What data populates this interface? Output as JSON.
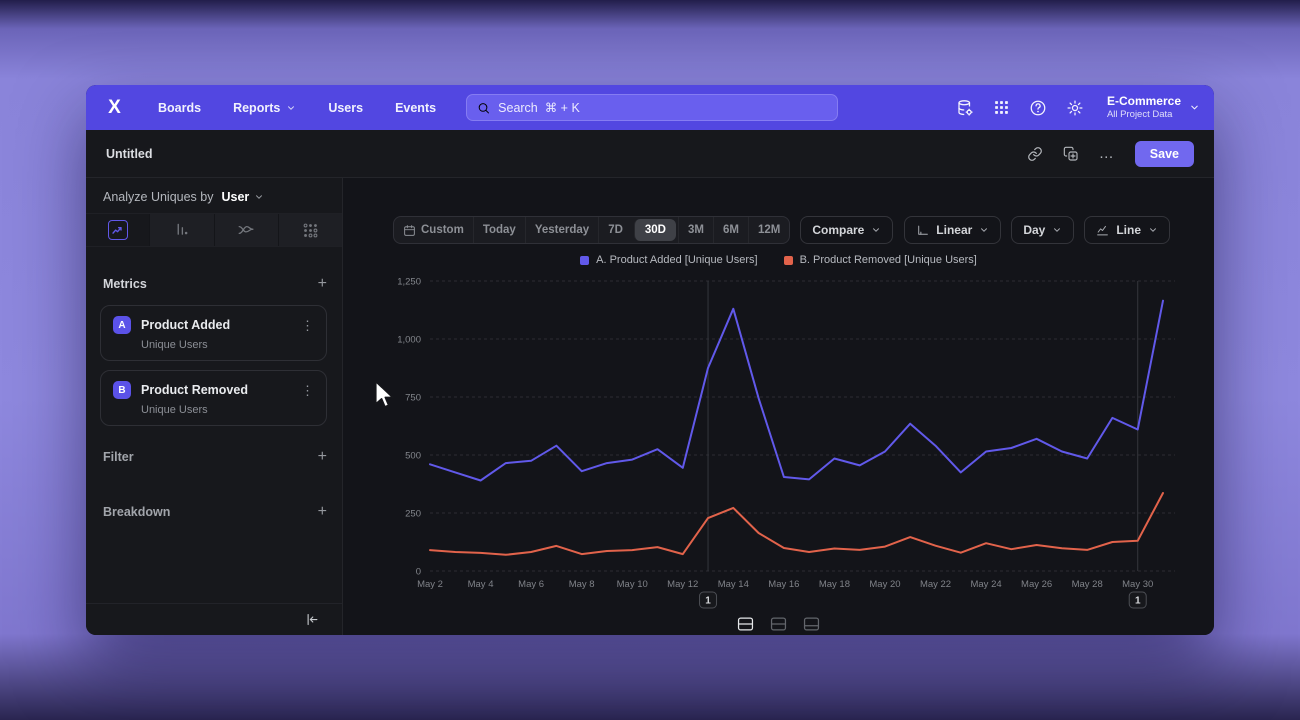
{
  "icons": {
    "logo": "X",
    "add": "+",
    "kebab": "⋮",
    "more": "…",
    "help": "?"
  },
  "nav": {
    "items": [
      {
        "label": "Boards",
        "has_dropdown": false
      },
      {
        "label": "Reports",
        "has_dropdown": true
      },
      {
        "label": "Users",
        "has_dropdown": false
      },
      {
        "label": "Events",
        "has_dropdown": false
      }
    ],
    "search_placeholder": "Search  ⌘ + K",
    "org_name": "E-Commerce",
    "org_scope": "All Project Data"
  },
  "toolbar": {
    "title": "Untitled",
    "save_label": "Save"
  },
  "sidebar": {
    "analyze_prefix": "Analyze Uniques by",
    "analyze_value": "User",
    "metrics_header": "Metrics",
    "metrics": [
      {
        "badge": "A",
        "name": "Product Added",
        "subtitle": "Unique Users"
      },
      {
        "badge": "B",
        "name": "Product Removed",
        "subtitle": "Unique Users"
      }
    ],
    "filter_header": "Filter",
    "breakdown_header": "Breakdown"
  },
  "controls": {
    "ranges": [
      "Custom",
      "Today",
      "Yesterday",
      "7D",
      "30D",
      "3M",
      "6M",
      "12M"
    ],
    "active_range": "30D",
    "compare_label": "Compare",
    "scale_label": "Linear",
    "granularity_label": "Day",
    "chart_type_label": "Line"
  },
  "chart_data": {
    "type": "line",
    "x": [
      "May 2",
      "May 3",
      "May 4",
      "May 5",
      "May 6",
      "May 7",
      "May 8",
      "May 9",
      "May 10",
      "May 11",
      "May 12",
      "May 13",
      "May 14",
      "May 15",
      "May 16",
      "May 17",
      "May 18",
      "May 19",
      "May 20",
      "May 21",
      "May 22",
      "May 23",
      "May 24",
      "May 25",
      "May 26",
      "May 27",
      "May 28",
      "May 29",
      "May 30",
      "May 31"
    ],
    "x_tick_labels": [
      "May 2",
      "May 4",
      "May 6",
      "May 8",
      "May 10",
      "May 12",
      "May 14",
      "May 16",
      "May 18",
      "May 20",
      "May 22",
      "May 24",
      "May 26",
      "May 28",
      "May 30"
    ],
    "ylim": [
      0,
      1250
    ],
    "ytick_values": [
      0,
      250,
      500,
      750,
      1000,
      1250
    ],
    "ytick_labels": [
      "0",
      "250",
      "500",
      "750",
      "1,000",
      "1,250"
    ],
    "series": [
      {
        "name": "A. Product Added [Unique Users]",
        "color": "#6159ea",
        "values": [
          460,
          425,
          390,
          465,
          475,
          540,
          430,
          465,
          480,
          525,
          445,
          875,
          1130,
          745,
          405,
          395,
          485,
          455,
          515,
          635,
          540,
          425,
          515,
          530,
          570,
          515,
          485,
          660,
          610,
          1165
        ]
      },
      {
        "name": "B. Product Removed [Unique Users]",
        "color": "#e2634b",
        "values": [
          90,
          82,
          78,
          70,
          82,
          108,
          73,
          86,
          90,
          103,
          73,
          228,
          272,
          164,
          99,
          82,
          97,
          91,
          105,
          146,
          109,
          79,
          120,
          94,
          112,
          98,
          91,
          125,
          130,
          336
        ]
      }
    ],
    "annotations": [
      {
        "label": "1",
        "x": "May 13"
      },
      {
        "label": "1",
        "x": "May 30"
      }
    ],
    "grid": "horizontal-dashed",
    "legend_position": "top-center"
  }
}
